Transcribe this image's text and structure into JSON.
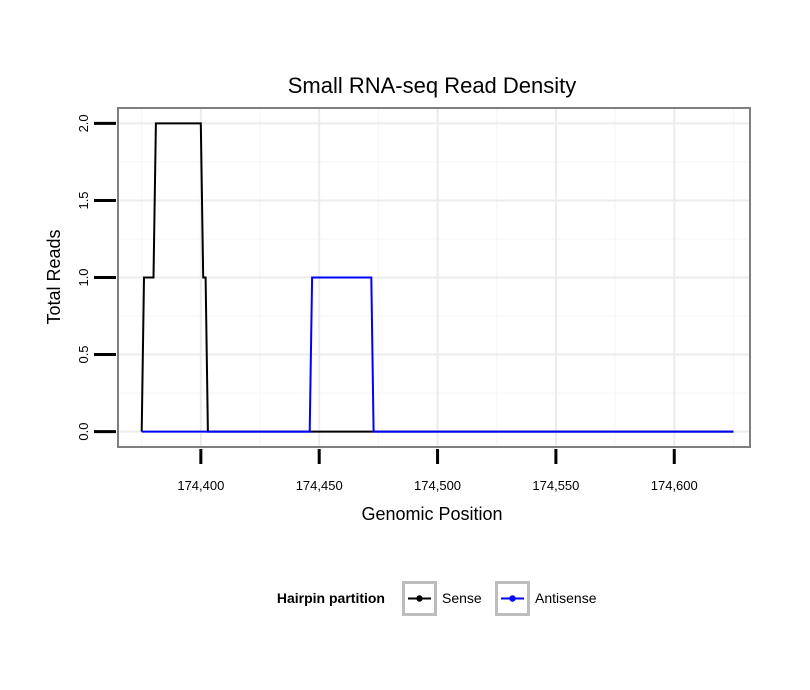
{
  "chart_data": {
    "type": "line",
    "title": "Small RNA-seq Read Density",
    "xlabel": "Genomic Position",
    "ylabel": "Total Reads",
    "xlim": [
      174365,
      174632
    ],
    "ylim": [
      -0.1,
      2.1
    ],
    "x_ticks": [
      174400,
      174450,
      174500,
      174550,
      174600
    ],
    "x_tick_labels": [
      "174,400",
      "174,450",
      "174,500",
      "174,550",
      "174,600"
    ],
    "y_ticks": [
      0.0,
      0.5,
      1.0,
      1.5,
      2.0
    ],
    "y_tick_labels": [
      "0.0",
      "0.5",
      "1.0",
      "1.5",
      "2.0"
    ],
    "grid": true,
    "legend": {
      "title": "Hairpin partition",
      "position": "bottom"
    },
    "series": [
      {
        "name": "Sense",
        "color": "#000000",
        "x": [
          174375,
          174376,
          174379,
          174380,
          174381,
          174382,
          174399,
          174400,
          174401,
          174402,
          174403,
          174625
        ],
        "y": [
          0,
          1,
          1,
          1,
          2,
          2,
          2,
          2,
          1,
          1,
          0,
          0
        ]
      },
      {
        "name": "Antisense",
        "color": "#0000ff",
        "x": [
          174375,
          174446,
          174447,
          174472,
          174473,
          174625
        ],
        "y": [
          0,
          0,
          1,
          1,
          0,
          0
        ]
      }
    ]
  }
}
